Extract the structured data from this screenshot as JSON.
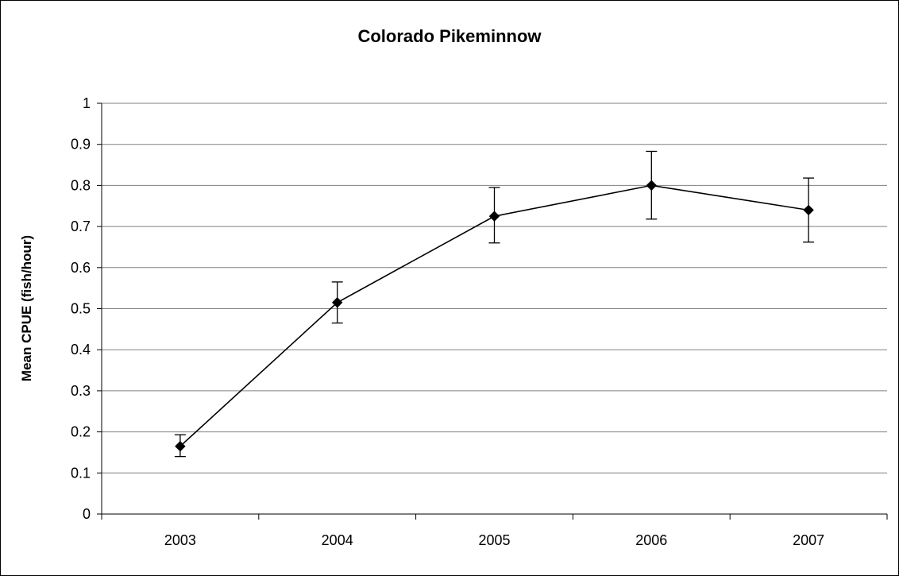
{
  "chart_data": {
    "type": "line",
    "title": "Colorado Pikeminnow",
    "xlabel": "",
    "ylabel": "Mean CPUE (fish/hour)",
    "categories": [
      "2003",
      "2004",
      "2005",
      "2006",
      "2007"
    ],
    "series": [
      {
        "values": [
          0.165,
          0.515,
          0.725,
          0.8,
          0.74
        ],
        "error_low": [
          0.14,
          0.465,
          0.66,
          0.718,
          0.662
        ],
        "error_high": [
          0.193,
          0.565,
          0.795,
          0.883,
          0.818
        ]
      }
    ],
    "ylim": [
      0,
      1
    ],
    "yticks": [
      "0",
      "0.1",
      "0.2",
      "0.3",
      "0.4",
      "0.5",
      "0.6",
      "0.7",
      "0.8",
      "0.9",
      "1"
    ],
    "grid": "horizontal",
    "marker": "diamond",
    "colors": {
      "line": "#000000",
      "grid": "#808080",
      "axis": "#000000"
    }
  }
}
